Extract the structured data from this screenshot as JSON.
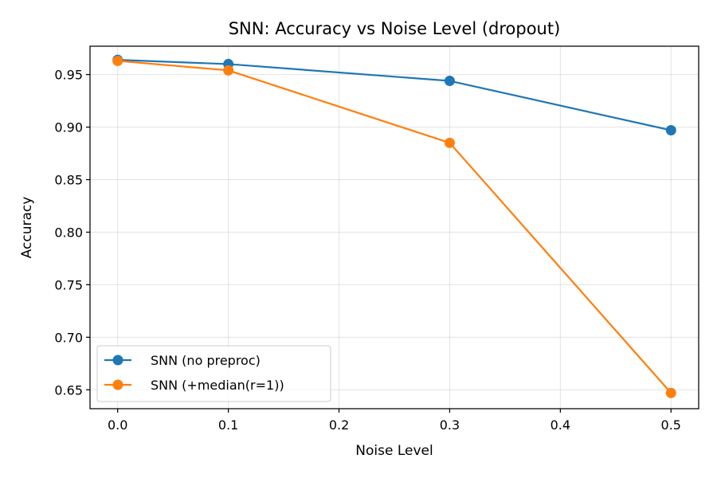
{
  "chart_data": {
    "type": "line",
    "title": "SNN: Accuracy vs Noise Level (dropout)",
    "xlabel": "Noise Level",
    "ylabel": "Accuracy",
    "x": [
      0.0,
      0.1,
      0.3,
      0.5
    ],
    "xlim": [
      -0.025,
      0.525
    ],
    "ylim": [
      0.632,
      0.977
    ],
    "xticks": [
      0.0,
      0.1,
      0.2,
      0.3,
      0.4,
      0.5
    ],
    "xtick_labels": [
      "0.0",
      "0.1",
      "0.2",
      "0.3",
      "0.4",
      "0.5"
    ],
    "yticks": [
      0.65,
      0.7,
      0.75,
      0.8,
      0.85,
      0.9,
      0.95
    ],
    "ytick_labels": [
      "0.65",
      "0.70",
      "0.75",
      "0.80",
      "0.85",
      "0.90",
      "0.95"
    ],
    "grid": true,
    "legend_position": "bottom-left",
    "series": [
      {
        "name": "SNN (no preproc)",
        "color": "#1f77b4",
        "marker": "circle",
        "values": [
          0.964,
          0.96,
          0.944,
          0.897
        ]
      },
      {
        "name": "SNN (+median(r=1))",
        "color": "#ff7f0e",
        "marker": "circle",
        "values": [
          0.963,
          0.954,
          0.885,
          0.647
        ]
      }
    ]
  }
}
